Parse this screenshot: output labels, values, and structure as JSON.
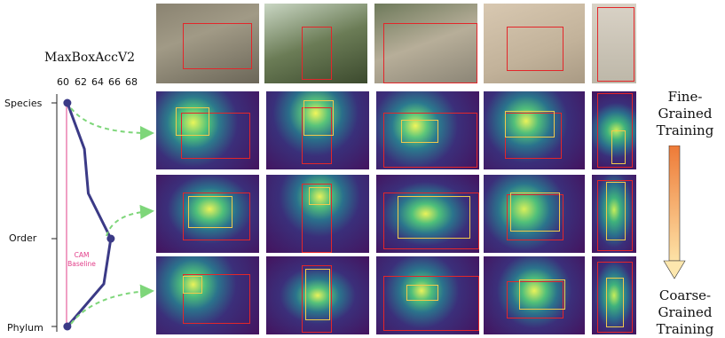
{
  "chart_data": {
    "type": "line",
    "title": "MaxBoxAccV2",
    "x_ticks": [
      "60",
      "62",
      "64",
      "66",
      "68"
    ],
    "xlim": [
      60,
      68
    ],
    "y_categories": [
      "Species",
      "Order",
      "Phylum"
    ],
    "series": [
      {
        "values": [
          {
            "level": "Species",
            "x": 60.1
          },
          {
            "level": "Order",
            "x": 65.7
          },
          {
            "level": "Phylum",
            "x": 60.1
          }
        ]
      }
    ],
    "annotation": "CAM Baseline",
    "baseline_x": 60.0
  },
  "right_panel": {
    "top_label": [
      "Fine-",
      "Grained",
      "Training"
    ],
    "bottom_label": [
      "Coarse-",
      "Grained",
      "Training"
    ]
  },
  "colors": {
    "line": "#3b3a86",
    "baseline": "#e23f8a",
    "arrow": "#7ed67a",
    "gt_box": "#e3262a",
    "pred_box": "#f2c94c"
  }
}
